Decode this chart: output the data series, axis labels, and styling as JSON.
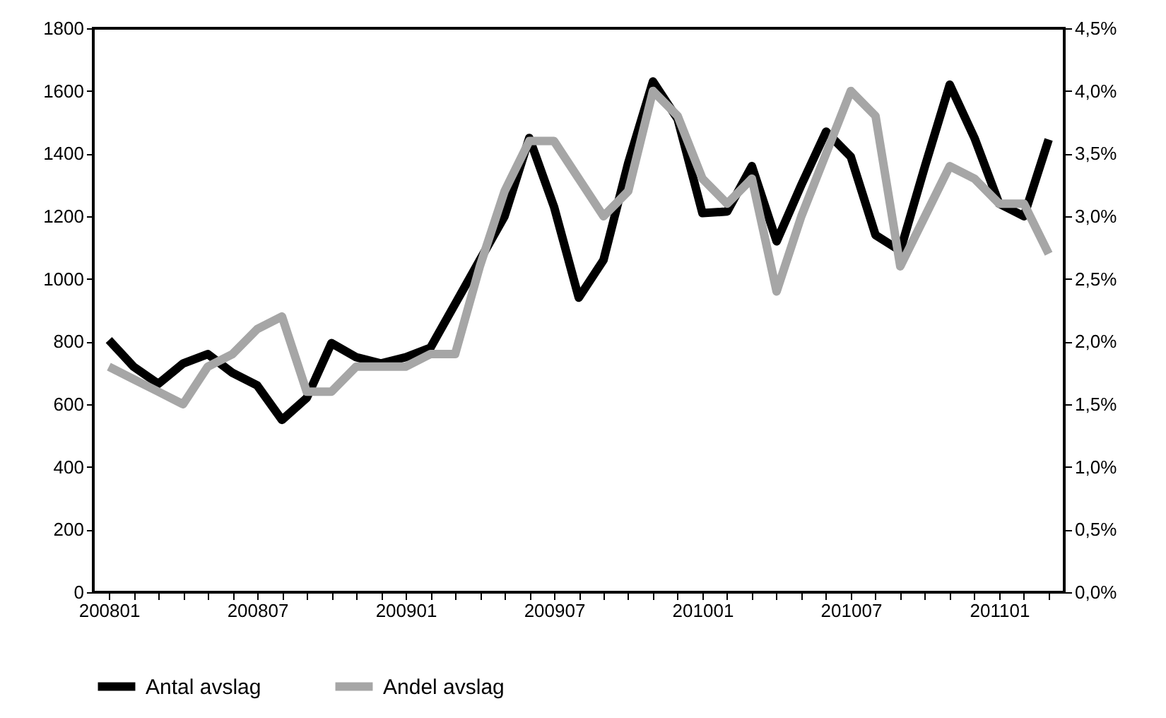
{
  "chart_data": {
    "type": "line",
    "categories": [
      "200801",
      null,
      null,
      null,
      null,
      null,
      "200807",
      null,
      null,
      null,
      null,
      null,
      "200901",
      null,
      null,
      null,
      null,
      null,
      "200907",
      null,
      null,
      null,
      null,
      null,
      "201001",
      null,
      null,
      null,
      null,
      null,
      "201007",
      null,
      null,
      null,
      null,
      null,
      "201101",
      null,
      null
    ],
    "series": [
      {
        "name": "Antal avslag",
        "color": "#000000",
        "values": [
          805,
          720,
          665,
          730,
          760,
          700,
          660,
          550,
          620,
          795,
          750,
          730,
          750,
          780,
          920,
          1060,
          1200,
          1450,
          1230,
          940,
          1060,
          1370,
          1630,
          1510,
          1210,
          1215,
          1360,
          1120,
          1300,
          1470,
          1390,
          1140,
          1090,
          1360,
          1620,
          1450,
          1240,
          1200,
          1445
        ]
      },
      {
        "name": "Andel avslag",
        "color": "#a6a6a6",
        "axis": "y2",
        "values": [
          1.8,
          1.7,
          1.6,
          1.5,
          1.8,
          1.9,
          2.1,
          2.2,
          1.6,
          1.6,
          1.8,
          1.8,
          1.8,
          1.9,
          1.9,
          2.6,
          3.2,
          3.6,
          3.6,
          3.3,
          3.0,
          3.2,
          4.0,
          3.8,
          3.3,
          3.1,
          3.3,
          2.4,
          3.0,
          3.5,
          4.0,
          3.8,
          2.6,
          3.0,
          3.4,
          3.3,
          3.1,
          3.1,
          2.7
        ]
      }
    ],
    "ylim": [
      0,
      1800
    ],
    "yticks": [
      0,
      200,
      400,
      600,
      800,
      1000,
      1200,
      1400,
      1600,
      1800
    ],
    "y2lim": [
      0,
      4.5
    ],
    "y2ticks": [
      {
        "value": 0,
        "label": "0,0%"
      },
      {
        "value": 0.5,
        "label": "0,5%"
      },
      {
        "value": 1,
        "label": "1,0%"
      },
      {
        "value": 1.5,
        "label": "1,5%"
      },
      {
        "value": 2,
        "label": "2,0%"
      },
      {
        "value": 2.5,
        "label": "2,5%"
      },
      {
        "value": 3,
        "label": "3,0%"
      },
      {
        "value": 3.5,
        "label": "3,5%"
      },
      {
        "value": 4,
        "label": "4,0%"
      },
      {
        "value": 4.5,
        "label": "4,5%"
      }
    ],
    "grid": false,
    "legend": "bottom",
    "marker": "none",
    "line_style": "solid"
  }
}
